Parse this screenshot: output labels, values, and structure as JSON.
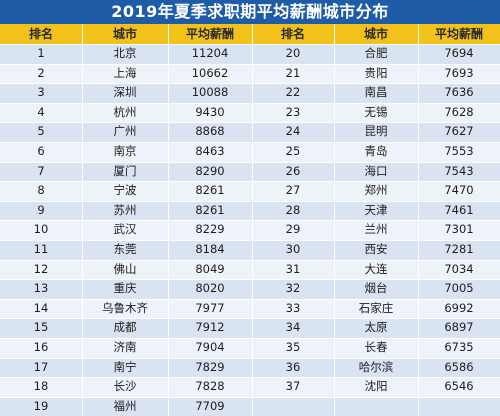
{
  "title": "2019年夏季求职期平均薪酬城市分布",
  "headers": [
    "排名",
    "城市",
    "平均薪酬",
    "排名",
    "城市",
    "平均薪酬"
  ],
  "colors": {
    "title_bg": "#1f5ca8",
    "header_bg": "#f2c21a",
    "row_odd": "#d9e3f1",
    "row_even": "#eef2f9"
  },
  "rows": [
    {
      "r1": "1",
      "c1": "北京",
      "s1": "11204",
      "r2": "20",
      "c2": "合肥",
      "s2": "7694"
    },
    {
      "r1": "2",
      "c1": "上海",
      "s1": "10662",
      "r2": "21",
      "c2": "贵阳",
      "s2": "7693"
    },
    {
      "r1": "3",
      "c1": "深圳",
      "s1": "10088",
      "r2": "22",
      "c2": "南昌",
      "s2": "7636"
    },
    {
      "r1": "4",
      "c1": "杭州",
      "s1": "9430",
      "r2": "23",
      "c2": "无锡",
      "s2": "7628"
    },
    {
      "r1": "5",
      "c1": "广州",
      "s1": "8868",
      "r2": "24",
      "c2": "昆明",
      "s2": "7627"
    },
    {
      "r1": "6",
      "c1": "南京",
      "s1": "8463",
      "r2": "25",
      "c2": "青岛",
      "s2": "7553"
    },
    {
      "r1": "7",
      "c1": "厦门",
      "s1": "8290",
      "r2": "26",
      "c2": "海口",
      "s2": "7543"
    },
    {
      "r1": "8",
      "c1": "宁波",
      "s1": "8261",
      "r2": "27",
      "c2": "郑州",
      "s2": "7470"
    },
    {
      "r1": "9",
      "c1": "苏州",
      "s1": "8261",
      "r2": "28",
      "c2": "天津",
      "s2": "7461"
    },
    {
      "r1": "10",
      "c1": "武汉",
      "s1": "8229",
      "r2": "29",
      "c2": "兰州",
      "s2": "7301"
    },
    {
      "r1": "11",
      "c1": "东莞",
      "s1": "8184",
      "r2": "30",
      "c2": "西安",
      "s2": "7281"
    },
    {
      "r1": "12",
      "c1": "佛山",
      "s1": "8049",
      "r2": "31",
      "c2": "大连",
      "s2": "7034"
    },
    {
      "r1": "13",
      "c1": "重庆",
      "s1": "8020",
      "r2": "32",
      "c2": "烟台",
      "s2": "7005"
    },
    {
      "r1": "14",
      "c1": "乌鲁木齐",
      "s1": "7977",
      "r2": "33",
      "c2": "石家庄",
      "s2": "6992"
    },
    {
      "r1": "15",
      "c1": "成都",
      "s1": "7912",
      "r2": "34",
      "c2": "太原",
      "s2": "6897"
    },
    {
      "r1": "16",
      "c1": "济南",
      "s1": "7904",
      "r2": "35",
      "c2": "长春",
      "s2": "6735"
    },
    {
      "r1": "17",
      "c1": "南宁",
      "s1": "7829",
      "r2": "36",
      "c2": "哈尔滨",
      "s2": "6586"
    },
    {
      "r1": "18",
      "c1": "长沙",
      "s1": "7828",
      "r2": "37",
      "c2": "沈阳",
      "s2": "6546"
    },
    {
      "r1": "19",
      "c1": "福州",
      "s1": "7709",
      "r2": "",
      "c2": "",
      "s2": ""
    }
  ]
}
